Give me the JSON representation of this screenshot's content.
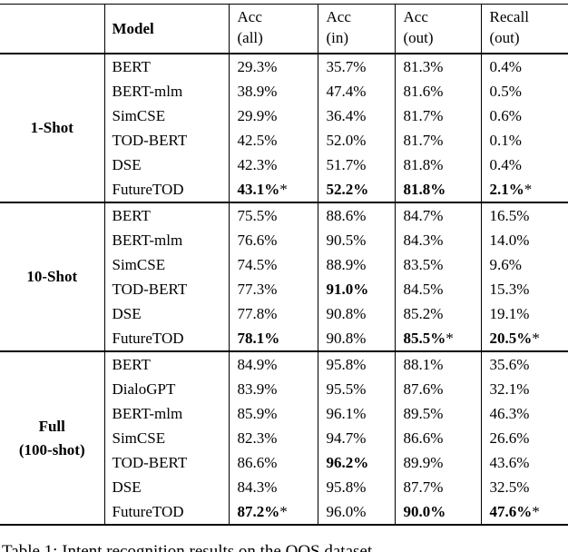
{
  "page": {
    "background": "#ffffff",
    "text_color": "#000000",
    "rule_color": "#000000"
  },
  "table": {
    "header": {
      "group": "",
      "model": "Model",
      "metrics": [
        {
          "line1": "Acc",
          "line2": "(all)"
        },
        {
          "line1": "Acc",
          "line2": "(in)"
        },
        {
          "line1": "Acc",
          "line2": "(out)"
        },
        {
          "line1": "Recall",
          "line2": "(out)"
        }
      ]
    },
    "groups": [
      {
        "label_lines": [
          "1-Shot"
        ],
        "rows": [
          {
            "model": "BERT",
            "cells": [
              {
                "v": "29.3%"
              },
              {
                "v": "35.7%"
              },
              {
                "v": "81.3%"
              },
              {
                "v": "0.4%"
              }
            ]
          },
          {
            "model": "BERT-mlm",
            "cells": [
              {
                "v": "38.9%"
              },
              {
                "v": "47.4%"
              },
              {
                "v": "81.6%"
              },
              {
                "v": "0.5%"
              }
            ]
          },
          {
            "model": "SimCSE",
            "cells": [
              {
                "v": "29.9%"
              },
              {
                "v": "36.4%"
              },
              {
                "v": "81.7%"
              },
              {
                "v": "0.6%"
              }
            ]
          },
          {
            "model": "TOD-BERT",
            "cells": [
              {
                "v": "42.5%"
              },
              {
                "v": "52.0%"
              },
              {
                "v": "81.7%"
              },
              {
                "v": "0.1%"
              }
            ]
          },
          {
            "model": "DSE",
            "cells": [
              {
                "v": "42.3%"
              },
              {
                "v": "51.7%"
              },
              {
                "v": "81.8%"
              },
              {
                "v": "0.4%"
              }
            ]
          },
          {
            "model": "FutureTOD",
            "cells": [
              {
                "v": "43.1%",
                "bold": true,
                "star": "*"
              },
              {
                "v": "52.2%",
                "bold": true
              },
              {
                "v": "81.8%",
                "bold": true
              },
              {
                "v": "2.1%",
                "bold": true,
                "star": "*"
              }
            ]
          }
        ]
      },
      {
        "label_lines": [
          "10-Shot"
        ],
        "rows": [
          {
            "model": "BERT",
            "cells": [
              {
                "v": "75.5%"
              },
              {
                "v": "88.6%"
              },
              {
                "v": "84.7%"
              },
              {
                "v": "16.5%"
              }
            ]
          },
          {
            "model": "BERT-mlm",
            "cells": [
              {
                "v": "76.6%"
              },
              {
                "v": "90.5%"
              },
              {
                "v": "84.3%"
              },
              {
                "v": "14.0%"
              }
            ]
          },
          {
            "model": "SimCSE",
            "cells": [
              {
                "v": "74.5%"
              },
              {
                "v": "88.9%"
              },
              {
                "v": "83.5%"
              },
              {
                "v": "9.6%"
              }
            ]
          },
          {
            "model": "TOD-BERT",
            "cells": [
              {
                "v": "77.3%"
              },
              {
                "v": "91.0%",
                "bold": true
              },
              {
                "v": "84.5%"
              },
              {
                "v": "15.3%"
              }
            ]
          },
          {
            "model": "DSE",
            "cells": [
              {
                "v": "77.8%"
              },
              {
                "v": "90.8%"
              },
              {
                "v": "85.2%"
              },
              {
                "v": "19.1%"
              }
            ]
          },
          {
            "model": "FutureTOD",
            "cells": [
              {
                "v": "78.1%",
                "bold": true
              },
              {
                "v": "90.8%"
              },
              {
                "v": "85.5%",
                "bold": true,
                "star": "*"
              },
              {
                "v": "20.5%",
                "bold": true,
                "star": "*"
              }
            ]
          }
        ]
      },
      {
        "label_lines": [
          "Full",
          "(100-shot)"
        ],
        "rows": [
          {
            "model": "BERT",
            "cells": [
              {
                "v": "84.9%"
              },
              {
                "v": "95.8%"
              },
              {
                "v": "88.1%"
              },
              {
                "v": "35.6%"
              }
            ]
          },
          {
            "model": "DialoGPT",
            "cells": [
              {
                "v": "83.9%"
              },
              {
                "v": "95.5%"
              },
              {
                "v": "87.6%"
              },
              {
                "v": "32.1%"
              }
            ]
          },
          {
            "model": "BERT-mlm",
            "cells": [
              {
                "v": "85.9%"
              },
              {
                "v": "96.1%"
              },
              {
                "v": "89.5%"
              },
              {
                "v": "46.3%"
              }
            ]
          },
          {
            "model": "SimCSE",
            "cells": [
              {
                "v": "82.3%"
              },
              {
                "v": "94.7%"
              },
              {
                "v": "86.6%"
              },
              {
                "v": "26.6%"
              }
            ]
          },
          {
            "model": "TOD-BERT",
            "cells": [
              {
                "v": "86.6%"
              },
              {
                "v": "96.2%",
                "bold": true
              },
              {
                "v": "89.9%"
              },
              {
                "v": "43.6%"
              }
            ]
          },
          {
            "model": "DSE",
            "cells": [
              {
                "v": "84.3%"
              },
              {
                "v": "95.8%"
              },
              {
                "v": "87.7%"
              },
              {
                "v": "32.5%"
              }
            ]
          },
          {
            "model": "FutureTOD",
            "cells": [
              {
                "v": "87.2%",
                "bold": true,
                "star": "*"
              },
              {
                "v": "96.0%"
              },
              {
                "v": "90.0%",
                "bold": true
              },
              {
                "v": "47.6%",
                "bold": true,
                "star": "*"
              }
            ]
          }
        ]
      }
    ]
  },
  "caption": "Table 1: Intent recognition results on the OOS dataset"
}
